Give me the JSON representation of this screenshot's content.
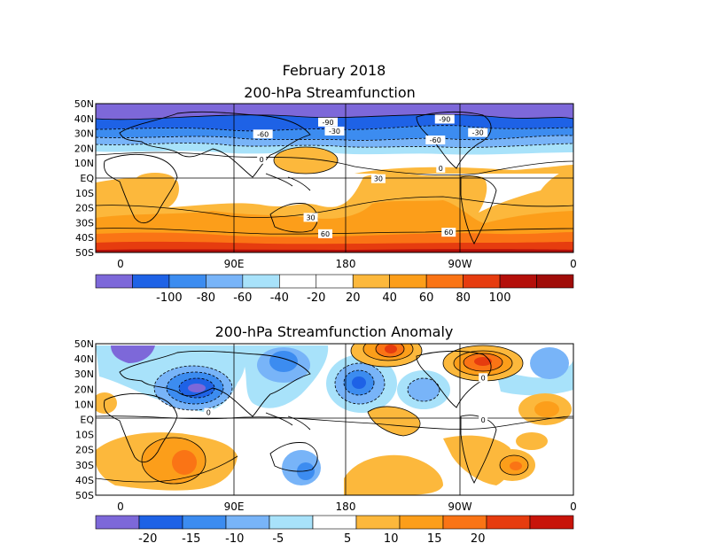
{
  "page": {
    "title_line1": "February 2018",
    "title_line2": "200-hPa Streamfunction",
    "title_bottom": "200-hPa Streamfunction Anomaly"
  },
  "chart_data": [
    {
      "type": "heatmap",
      "title": "200-hPa Streamfunction",
      "x_tick_labels": [
        "0",
        "90E",
        "180",
        "90W",
        "0"
      ],
      "y_tick_labels": [
        "50N",
        "40N",
        "30N",
        "20N",
        "10N",
        "EQ",
        "10S",
        "20S",
        "30S",
        "40S",
        "50S"
      ],
      "xlim": [
        0,
        360
      ],
      "ylim": [
        -50,
        50
      ],
      "contour_labels": [
        {
          "text": "-90",
          "lon": 155,
          "lat": 37
        },
        {
          "text": "-60",
          "lon": 106,
          "lat": 29
        },
        {
          "text": "-30",
          "lon": 160,
          "lat": 31
        },
        {
          "text": "0",
          "lon": 105,
          "lat": 12
        },
        {
          "text": "30",
          "lon": 193,
          "lat": -1
        },
        {
          "text": "30",
          "lon": 142,
          "lat": -27
        },
        {
          "text": "60",
          "lon": 153,
          "lat": -38
        },
        {
          "text": "-90",
          "lon": 243,
          "lat": 39
        },
        {
          "text": "-60",
          "lon": 236,
          "lat": 25
        },
        {
          "text": "-30",
          "lon": 268,
          "lat": 30
        },
        {
          "text": "0",
          "lon": 240,
          "lat": 6
        },
        {
          "text": "60",
          "lon": 246,
          "lat": -37
        }
      ],
      "colorbar": {
        "colors": [
          "#7d68d9",
          "#1e62e6",
          "#3c8cf0",
          "#78b4f8",
          "#a8e2fa",
          "#ffffff",
          "#ffffff",
          "#fcb83c",
          "#fc9e1a",
          "#fa7415",
          "#e63c0f",
          "#b40f0a",
          "#a00c08"
        ],
        "labels": [
          "-100",
          "-80",
          "-60",
          "-40",
          "-20",
          "20",
          "40",
          "60",
          "80",
          "100"
        ]
      }
    },
    {
      "type": "heatmap",
      "title": "200-hPa Streamfunction Anomaly",
      "x_tick_labels": [
        "0",
        "90E",
        "180",
        "90W",
        "0"
      ],
      "y_tick_labels": [
        "50N",
        "40N",
        "30N",
        "20N",
        "10N",
        "EQ",
        "10S",
        "20S",
        "30S",
        "40S",
        "50S"
      ],
      "xlim": [
        0,
        360
      ],
      "ylim": [
        -50,
        50
      ],
      "contour_labels": [
        {
          "text": "0",
          "lon": 272,
          "lat": 27
        },
        {
          "text": "0",
          "lon": 272,
          "lat": -1
        },
        {
          "text": "0",
          "lon": 65,
          "lat": 4
        }
      ],
      "colorbar": {
        "colors": [
          "#7d68d9",
          "#1e62e6",
          "#3c8cf0",
          "#78b4f8",
          "#a8e2fa",
          "#ffffff",
          "#fcb83c",
          "#fc9e1a",
          "#fa7415",
          "#e63c0f",
          "#c8140a"
        ],
        "labels": [
          "-20",
          "-15",
          "-10",
          "-5",
          "5",
          "10",
          "15",
          "20"
        ]
      }
    }
  ]
}
